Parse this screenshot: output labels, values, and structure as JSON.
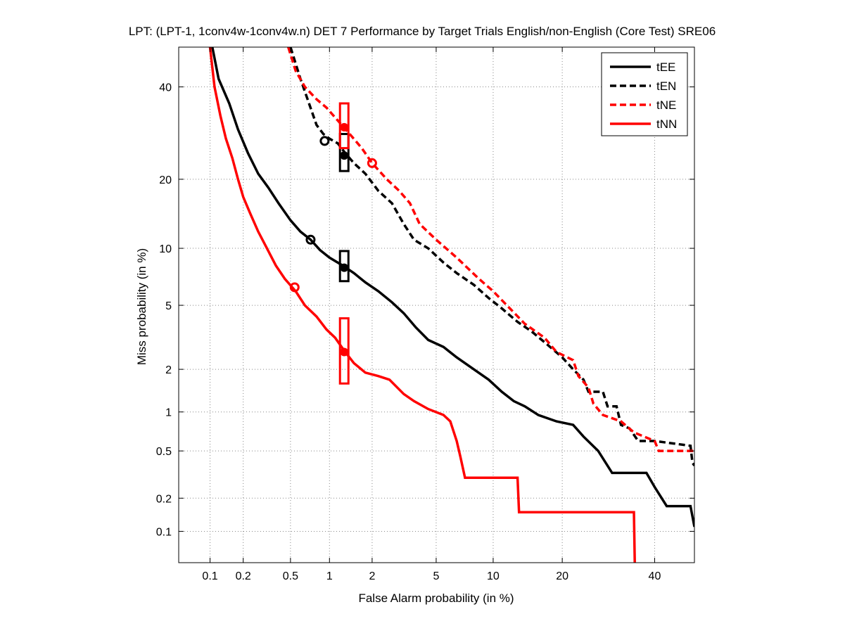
{
  "chart_data": {
    "type": "line",
    "title": "LPT: (LPT-1, 1conv4w-1conv4w.n) DET 7 Performance by Target Trials English/non-English (Core Test) SRE06",
    "xlabel": "False Alarm probability (in %)",
    "ylabel": "Miss probability (in %)",
    "x_scale": "normal-deviate (probit)",
    "y_scale": "normal-deviate (probit)",
    "xlim": [
      0.05,
      50
    ],
    "ylim": [
      0.05,
      50
    ],
    "x_ticks": [
      0.1,
      0.2,
      0.5,
      1,
      2,
      5,
      10,
      20,
      40
    ],
    "x_tick_labels": [
      "0.1",
      "0.2",
      "0.5",
      "1",
      "2",
      "5",
      "10",
      "20",
      "40"
    ],
    "y_ticks": [
      0.1,
      0.2,
      0.5,
      1,
      2,
      5,
      10,
      20,
      40
    ],
    "y_tick_labels": [
      "0.1",
      "0.2",
      "0.5",
      "1",
      "2",
      "5",
      "10",
      "20",
      "40"
    ],
    "grid": true,
    "legend_position": "top-right",
    "series": [
      {
        "name": "tEE",
        "color": "#000000",
        "dash": "solid",
        "points": [
          [
            0.105,
            50
          ],
          [
            0.12,
            42
          ],
          [
            0.15,
            36
          ],
          [
            0.18,
            30
          ],
          [
            0.22,
            25
          ],
          [
            0.27,
            21
          ],
          [
            0.33,
            18.5
          ],
          [
            0.4,
            16
          ],
          [
            0.5,
            13.5
          ],
          [
            0.6,
            12
          ],
          [
            0.72,
            11
          ],
          [
            0.85,
            9.8
          ],
          [
            1.0,
            9
          ],
          [
            1.25,
            8.2
          ],
          [
            1.5,
            7.5
          ],
          [
            1.8,
            6.7
          ],
          [
            2.2,
            6
          ],
          [
            2.7,
            5.2
          ],
          [
            3.2,
            4.5
          ],
          [
            3.8,
            3.7
          ],
          [
            4.5,
            3.1
          ],
          [
            5.5,
            2.8
          ],
          [
            6.5,
            2.4
          ],
          [
            8,
            2.0
          ],
          [
            9.5,
            1.7
          ],
          [
            11,
            1.4
          ],
          [
            12.5,
            1.2
          ],
          [
            14,
            1.1
          ],
          [
            16,
            0.95
          ],
          [
            19,
            0.85
          ],
          [
            22,
            0.8
          ],
          [
            24,
            0.65
          ],
          [
            27,
            0.5
          ],
          [
            30,
            0.33
          ],
          [
            38,
            0.33
          ],
          [
            40,
            0.25
          ],
          [
            43,
            0.17
          ],
          [
            49,
            0.17
          ],
          [
            50,
            0.11
          ]
        ],
        "markers": [
          {
            "type": "circle",
            "x": 0.72,
            "y": 11
          },
          {
            "type": "box",
            "x": 1.28,
            "y": 8.0,
            "y_low": 6.8,
            "y_high": 9.7
          }
        ]
      },
      {
        "name": "tEN",
        "color": "#000000",
        "dash": "dashed",
        "points": [
          [
            0.5,
            50
          ],
          [
            0.6,
            42
          ],
          [
            0.7,
            36
          ],
          [
            0.8,
            31
          ],
          [
            0.9,
            29
          ],
          [
            1.0,
            28
          ],
          [
            1.15,
            27
          ],
          [
            1.3,
            25
          ],
          [
            1.5,
            23
          ],
          [
            1.8,
            21
          ],
          [
            2.2,
            18
          ],
          [
            2.7,
            16
          ],
          [
            3.2,
            13
          ],
          [
            3.7,
            11
          ],
          [
            4.5,
            10
          ],
          [
            5.5,
            8.5
          ],
          [
            6.5,
            7.5
          ],
          [
            8,
            6.5
          ],
          [
            9.5,
            5.5
          ],
          [
            11,
            4.8
          ],
          [
            13,
            4.0
          ],
          [
            15,
            3.5
          ],
          [
            17,
            3.0
          ],
          [
            20,
            2.4
          ],
          [
            22,
            2.0
          ],
          [
            24,
            1.7
          ],
          [
            25,
            1.4
          ],
          [
            28,
            1.4
          ],
          [
            29,
            1.1
          ],
          [
            31,
            1.1
          ],
          [
            32,
            0.8
          ],
          [
            34,
            0.75
          ],
          [
            36,
            0.6
          ],
          [
            40,
            0.6
          ],
          [
            49,
            0.55
          ],
          [
            49.5,
            0.4
          ],
          [
            50,
            0.38
          ]
        ],
        "markers": [
          {
            "type": "circle",
            "x": 0.92,
            "y": 27.5
          },
          {
            "type": "box",
            "x": 1.28,
            "y": 24.5,
            "y_low": 21.5,
            "y_high": 29
          }
        ]
      },
      {
        "name": "tNE",
        "color": "#ff0000",
        "dash": "dashed",
        "points": [
          [
            0.48,
            50
          ],
          [
            0.55,
            44
          ],
          [
            0.65,
            40
          ],
          [
            0.8,
            37
          ],
          [
            0.95,
            35
          ],
          [
            1.15,
            32
          ],
          [
            1.4,
            29
          ],
          [
            1.7,
            26
          ],
          [
            2.0,
            23
          ],
          [
            2.5,
            20
          ],
          [
            3.0,
            18
          ],
          [
            3.5,
            16
          ],
          [
            4.0,
            13
          ],
          [
            5.0,
            11
          ],
          [
            6.5,
            9
          ],
          [
            8.5,
            7.0
          ],
          [
            10,
            6.0
          ],
          [
            12,
            4.8
          ],
          [
            14,
            3.9
          ],
          [
            17,
            3.2
          ],
          [
            19,
            2.6
          ],
          [
            22,
            2.3
          ],
          [
            23,
            1.8
          ],
          [
            25,
            1.5
          ],
          [
            26,
            1.15
          ],
          [
            28,
            0.95
          ],
          [
            32,
            0.85
          ],
          [
            35,
            0.7
          ],
          [
            40,
            0.6
          ],
          [
            41,
            0.5
          ],
          [
            50,
            0.5
          ]
        ],
        "markers": [
          {
            "type": "circle",
            "x": 2.0,
            "y": 23
          },
          {
            "type": "box",
            "x": 1.28,
            "y": 30.5,
            "y_low": 26,
            "y_high": 36
          }
        ]
      },
      {
        "name": "tNN",
        "color": "#ff0000",
        "dash": "solid",
        "points": [
          [
            0.1,
            50
          ],
          [
            0.11,
            40
          ],
          [
            0.125,
            33
          ],
          [
            0.14,
            28
          ],
          [
            0.16,
            24
          ],
          [
            0.18,
            20
          ],
          [
            0.2,
            17
          ],
          [
            0.23,
            14.5
          ],
          [
            0.27,
            12
          ],
          [
            0.32,
            10
          ],
          [
            0.38,
            8.2
          ],
          [
            0.45,
            7.0
          ],
          [
            0.55,
            6.0
          ],
          [
            0.65,
            5.0
          ],
          [
            0.8,
            4.3
          ],
          [
            0.95,
            3.6
          ],
          [
            1.1,
            3.2
          ],
          [
            1.3,
            2.6
          ],
          [
            1.5,
            2.2
          ],
          [
            1.8,
            1.9
          ],
          [
            2.2,
            1.8
          ],
          [
            2.6,
            1.7
          ],
          [
            3.2,
            1.35
          ],
          [
            3.7,
            1.2
          ],
          [
            4.5,
            1.05
          ],
          [
            5.5,
            0.95
          ],
          [
            6.0,
            0.85
          ],
          [
            6.5,
            0.6
          ],
          [
            6.8,
            0.45
          ],
          [
            7.2,
            0.3
          ],
          [
            13,
            0.3
          ],
          [
            13.2,
            0.15
          ],
          [
            35,
            0.15
          ],
          [
            35.2,
            0.05
          ]
        ],
        "markers": [
          {
            "type": "circle",
            "x": 0.54,
            "y": 6.3
          },
          {
            "type": "box",
            "x": 1.28,
            "y": 2.6,
            "y_low": 1.6,
            "y_high": 4.2
          }
        ]
      }
    ]
  }
}
